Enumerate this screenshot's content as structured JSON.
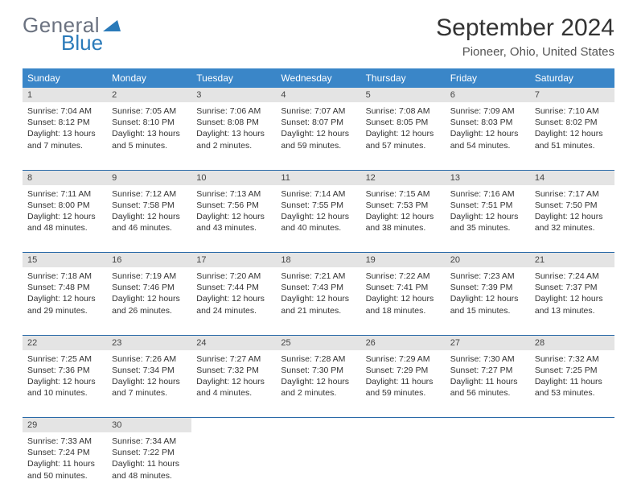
{
  "logo": {
    "text1": "General",
    "text2": "Blue"
  },
  "title": "September 2024",
  "location": "Pioneer, Ohio, United States",
  "colors": {
    "header_bg": "#3a86c8",
    "header_text": "#ffffff",
    "daynum_bg": "#e4e4e4",
    "border": "#2a6aa8",
    "logo_gray": "#6b7280",
    "logo_blue": "#2a7ab9"
  },
  "weekdays": [
    "Sunday",
    "Monday",
    "Tuesday",
    "Wednesday",
    "Thursday",
    "Friday",
    "Saturday"
  ],
  "days": [
    {
      "n": "1",
      "sr": "7:04 AM",
      "ss": "8:12 PM",
      "dl": "13 hours and 7 minutes."
    },
    {
      "n": "2",
      "sr": "7:05 AM",
      "ss": "8:10 PM",
      "dl": "13 hours and 5 minutes."
    },
    {
      "n": "3",
      "sr": "7:06 AM",
      "ss": "8:08 PM",
      "dl": "13 hours and 2 minutes."
    },
    {
      "n": "4",
      "sr": "7:07 AM",
      "ss": "8:07 PM",
      "dl": "12 hours and 59 minutes."
    },
    {
      "n": "5",
      "sr": "7:08 AM",
      "ss": "8:05 PM",
      "dl": "12 hours and 57 minutes."
    },
    {
      "n": "6",
      "sr": "7:09 AM",
      "ss": "8:03 PM",
      "dl": "12 hours and 54 minutes."
    },
    {
      "n": "7",
      "sr": "7:10 AM",
      "ss": "8:02 PM",
      "dl": "12 hours and 51 minutes."
    },
    {
      "n": "8",
      "sr": "7:11 AM",
      "ss": "8:00 PM",
      "dl": "12 hours and 48 minutes."
    },
    {
      "n": "9",
      "sr": "7:12 AM",
      "ss": "7:58 PM",
      "dl": "12 hours and 46 minutes."
    },
    {
      "n": "10",
      "sr": "7:13 AM",
      "ss": "7:56 PM",
      "dl": "12 hours and 43 minutes."
    },
    {
      "n": "11",
      "sr": "7:14 AM",
      "ss": "7:55 PM",
      "dl": "12 hours and 40 minutes."
    },
    {
      "n": "12",
      "sr": "7:15 AM",
      "ss": "7:53 PM",
      "dl": "12 hours and 38 minutes."
    },
    {
      "n": "13",
      "sr": "7:16 AM",
      "ss": "7:51 PM",
      "dl": "12 hours and 35 minutes."
    },
    {
      "n": "14",
      "sr": "7:17 AM",
      "ss": "7:50 PM",
      "dl": "12 hours and 32 minutes."
    },
    {
      "n": "15",
      "sr": "7:18 AM",
      "ss": "7:48 PM",
      "dl": "12 hours and 29 minutes."
    },
    {
      "n": "16",
      "sr": "7:19 AM",
      "ss": "7:46 PM",
      "dl": "12 hours and 26 minutes."
    },
    {
      "n": "17",
      "sr": "7:20 AM",
      "ss": "7:44 PM",
      "dl": "12 hours and 24 minutes."
    },
    {
      "n": "18",
      "sr": "7:21 AM",
      "ss": "7:43 PM",
      "dl": "12 hours and 21 minutes."
    },
    {
      "n": "19",
      "sr": "7:22 AM",
      "ss": "7:41 PM",
      "dl": "12 hours and 18 minutes."
    },
    {
      "n": "20",
      "sr": "7:23 AM",
      "ss": "7:39 PM",
      "dl": "12 hours and 15 minutes."
    },
    {
      "n": "21",
      "sr": "7:24 AM",
      "ss": "7:37 PM",
      "dl": "12 hours and 13 minutes."
    },
    {
      "n": "22",
      "sr": "7:25 AM",
      "ss": "7:36 PM",
      "dl": "12 hours and 10 minutes."
    },
    {
      "n": "23",
      "sr": "7:26 AM",
      "ss": "7:34 PM",
      "dl": "12 hours and 7 minutes."
    },
    {
      "n": "24",
      "sr": "7:27 AM",
      "ss": "7:32 PM",
      "dl": "12 hours and 4 minutes."
    },
    {
      "n": "25",
      "sr": "7:28 AM",
      "ss": "7:30 PM",
      "dl": "12 hours and 2 minutes."
    },
    {
      "n": "26",
      "sr": "7:29 AM",
      "ss": "7:29 PM",
      "dl": "11 hours and 59 minutes."
    },
    {
      "n": "27",
      "sr": "7:30 AM",
      "ss": "7:27 PM",
      "dl": "11 hours and 56 minutes."
    },
    {
      "n": "28",
      "sr": "7:32 AM",
      "ss": "7:25 PM",
      "dl": "11 hours and 53 minutes."
    },
    {
      "n": "29",
      "sr": "7:33 AM",
      "ss": "7:24 PM",
      "dl": "11 hours and 50 minutes."
    },
    {
      "n": "30",
      "sr": "7:34 AM",
      "ss": "7:22 PM",
      "dl": "11 hours and 48 minutes."
    }
  ],
  "labels": {
    "sunrise": "Sunrise: ",
    "sunset": "Sunset: ",
    "daylight": "Daylight: "
  }
}
